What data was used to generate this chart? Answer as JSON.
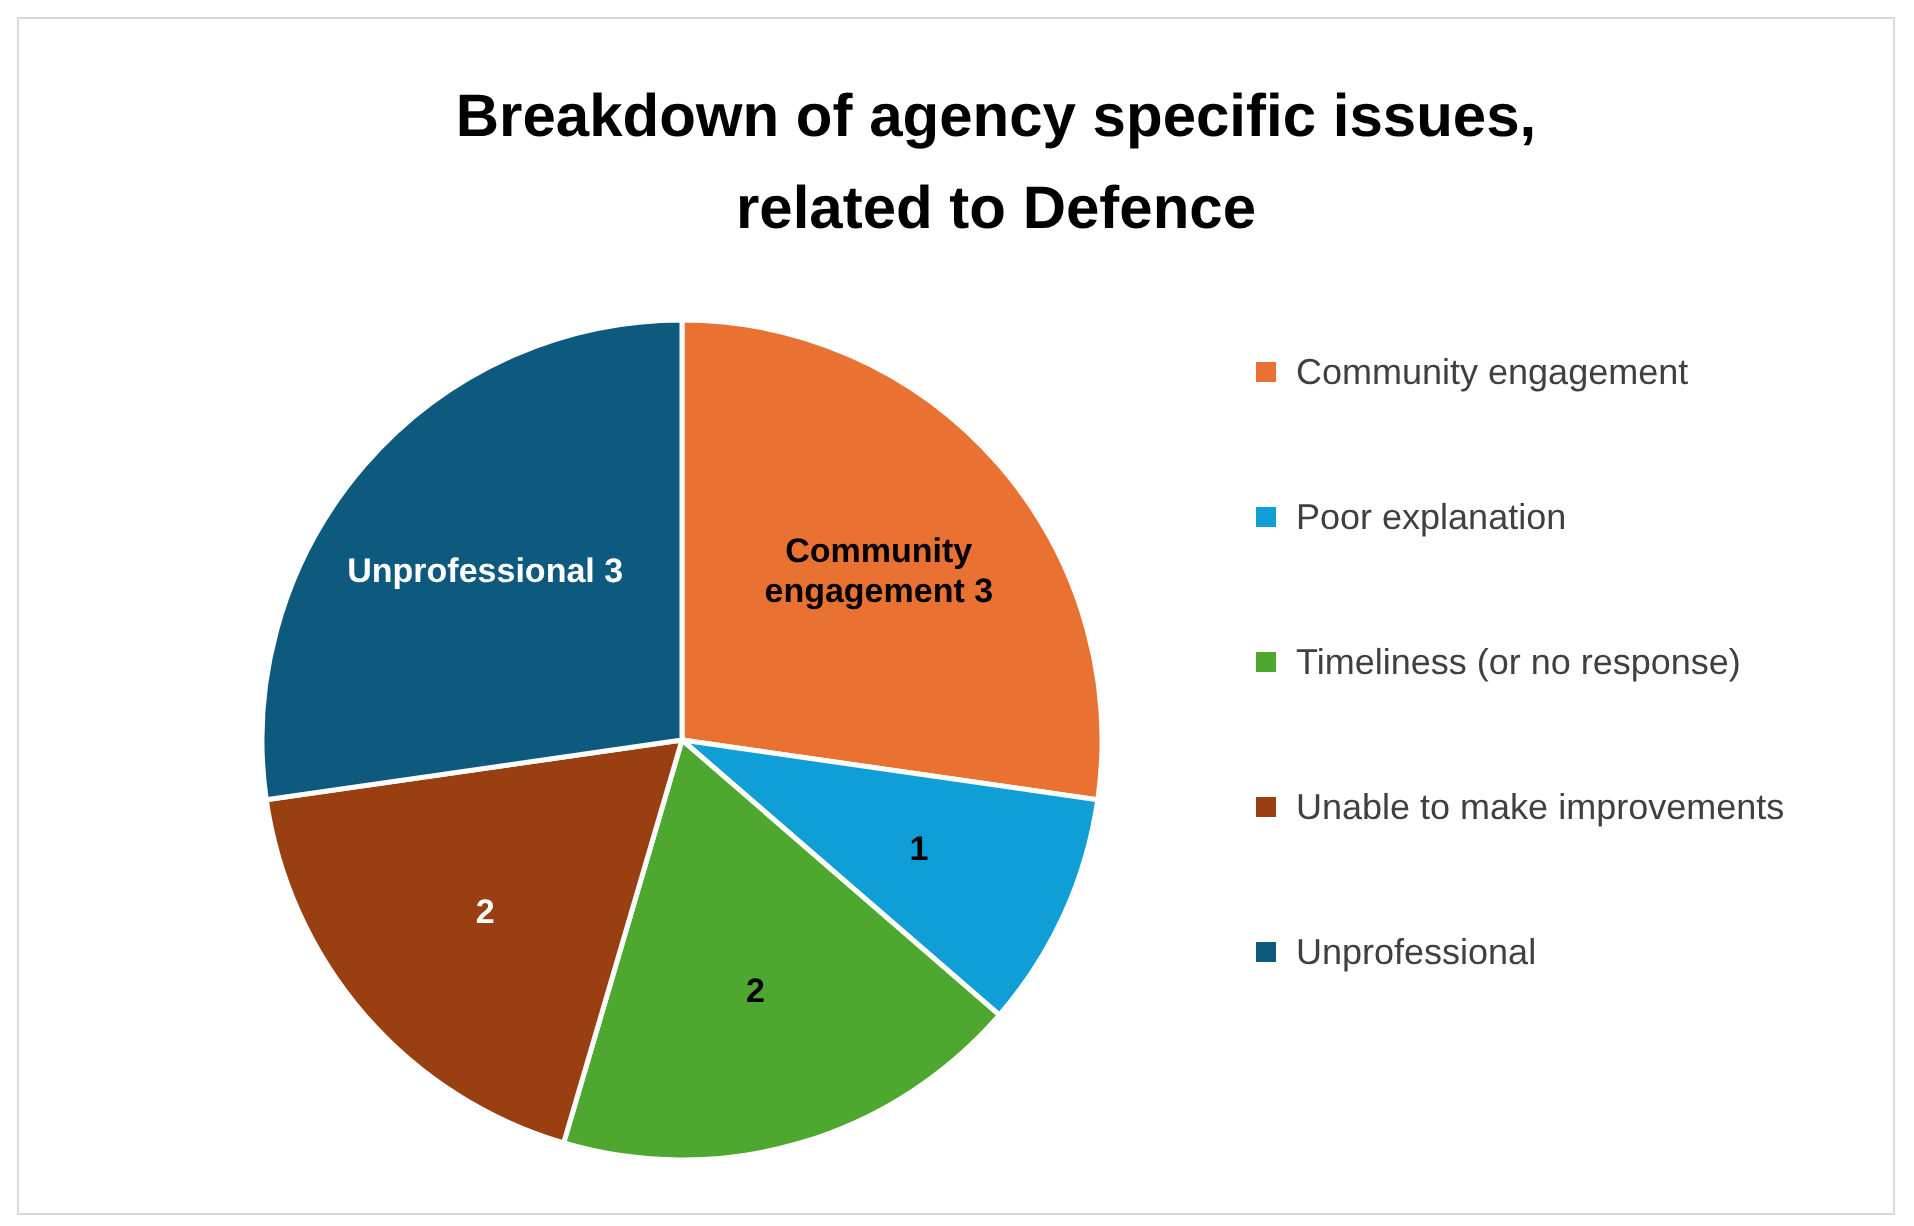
{
  "chart_data": {
    "type": "pie",
    "title": "Breakdown of agency specific issues, related to Defence",
    "categories": [
      "Community engagement",
      "Poor explanation",
      "Timeliness (or no response)",
      "Unable to make improvements",
      "Unprofessional"
    ],
    "values": [
      3,
      1,
      2,
      2,
      3
    ],
    "colors": [
      "#e97132",
      "#0f9ed5",
      "#4ea72e",
      "#9a3f12",
      "#0e5a7e"
    ],
    "value_labels": [
      "Community engagement 3",
      "1",
      "2",
      "2",
      "Unprofessional 3"
    ],
    "legend": "right"
  }
}
